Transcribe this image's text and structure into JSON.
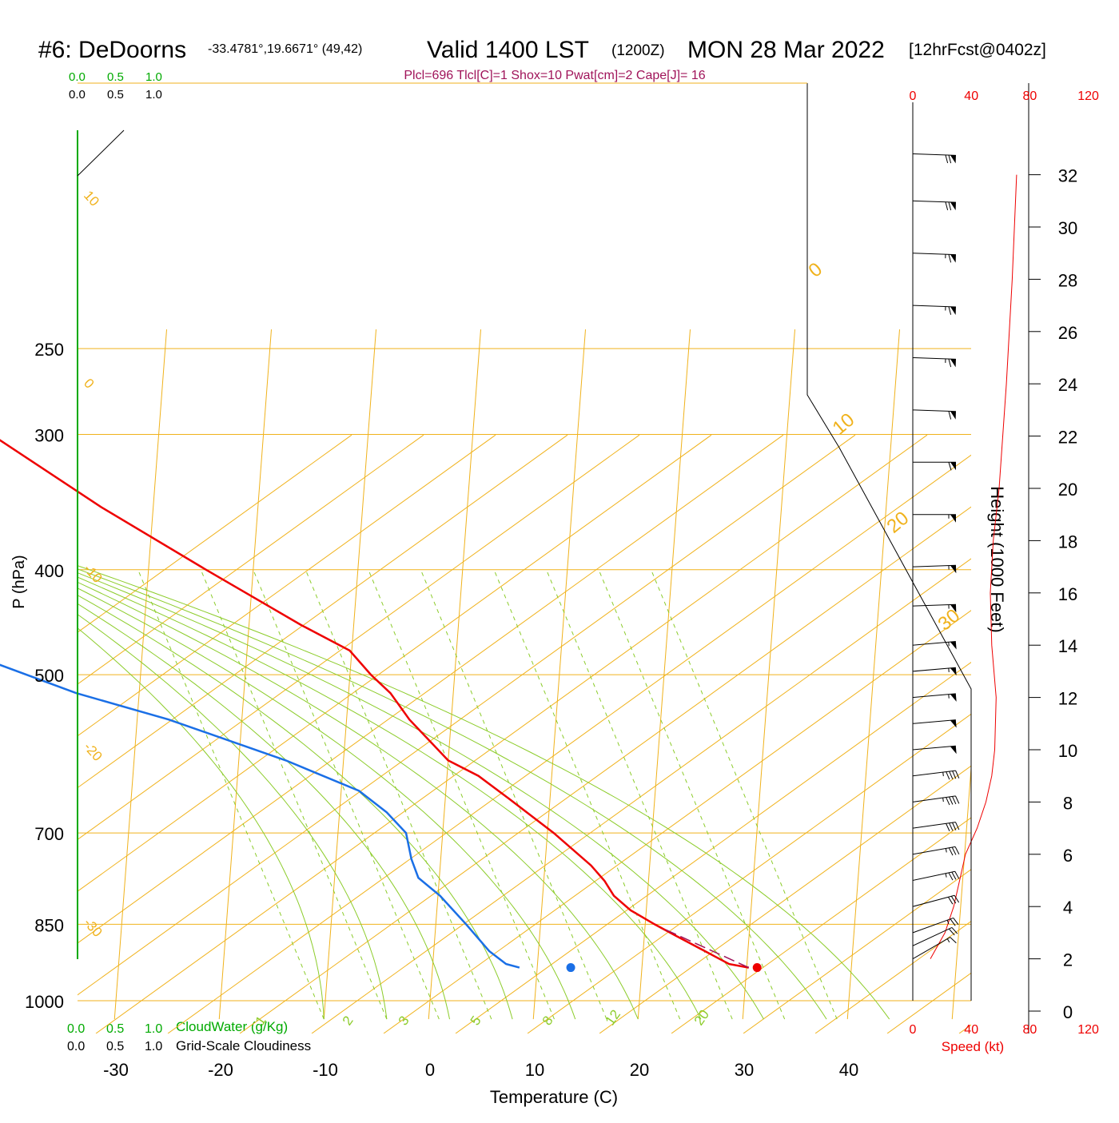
{
  "header": {
    "station": "#6: DeDoorns",
    "coords": "-33.4781°,19.6671° (49,42)",
    "valid": "Valid 1400 LST",
    "zulu": "(1200Z)",
    "date": "MON 28 Mar 2022",
    "fcst": "[12hrFcst@0402z]",
    "params": "Plcl=696 Tlcl[C]=1 Shox=10 Pwat[cm]=2 Cape[J]= 16"
  },
  "labels": {
    "xlabel": "Temperature (C)",
    "ylabel": "P (hPa)",
    "height_label": "Height (1000 Feet)",
    "speed_label": "Speed (kt)",
    "cloudwater_label": "CloudWater (g/Kg)",
    "cloudiness_label": "Grid-Scale Cloudiness",
    "scale_ticks": [
      "0.0",
      "0.5",
      "1.0"
    ]
  },
  "colors": {
    "temperature": "#ee0000",
    "dewpoint": "#1a6fe6",
    "isobars_isotherms": "#f0b21c",
    "dry_adiabats": "#8ccc2a",
    "mixing_ratio": "#8ccc2a",
    "title_magenta": "#a0145a",
    "cloudwater": "#00aa00",
    "speed": "#ee0000"
  },
  "chart_data": {
    "type": "line",
    "subtype": "skew-T log-P sounding",
    "x_ticks": [
      -30,
      -20,
      -10,
      0,
      10,
      20,
      30,
      40
    ],
    "pressure_ticks": [
      250,
      300,
      400,
      500,
      700,
      850,
      1000
    ],
    "isotherm_labels": [
      10,
      0,
      -10,
      -20,
      -30,
      0,
      10,
      20,
      30
    ],
    "mixing_ratio_labels": [
      "1",
      "2",
      "3",
      "5",
      "8",
      "12",
      "20"
    ],
    "height_ticks": [
      0,
      2,
      4,
      6,
      8,
      10,
      12,
      14,
      16,
      18,
      20,
      22,
      24,
      26,
      28,
      30,
      32
    ],
    "speed_ticks": [
      0,
      40,
      80,
      120
    ],
    "temperature_profile": [
      {
        "p": 932,
        "t": 30.2
      },
      {
        "p": 925,
        "t": 28.3
      },
      {
        "p": 900,
        "t": 25.9
      },
      {
        "p": 870,
        "t": 22.9
      },
      {
        "p": 850,
        "t": 20.9
      },
      {
        "p": 825,
        "t": 18.5
      },
      {
        "p": 800,
        "t": 16.8
      },
      {
        "p": 775,
        "t": 15.8
      },
      {
        "p": 750,
        "t": 14.4
      },
      {
        "p": 700,
        "t": 10.6
      },
      {
        "p": 650,
        "t": 6.0
      },
      {
        "p": 620,
        "t": 3.0
      },
      {
        "p": 600,
        "t": 0.0
      },
      {
        "p": 550,
        "t": -4.0
      },
      {
        "p": 520,
        "t": -6.0
      },
      {
        "p": 500,
        "t": -8.0
      },
      {
        "p": 475,
        "t": -10.2
      },
      {
        "p": 450,
        "t": -15.0
      },
      {
        "p": 400,
        "t": -24.5
      },
      {
        "p": 350,
        "t": -35.0
      },
      {
        "p": 300,
        "t": -46.0
      },
      {
        "p": 270,
        "t": -53.5
      }
    ],
    "dewpoint_profile": [
      {
        "p": 932,
        "t": 8.3
      },
      {
        "p": 925,
        "t": 7.0
      },
      {
        "p": 900,
        "t": 5.3
      },
      {
        "p": 850,
        "t": 2.9
      },
      {
        "p": 800,
        "t": 0.2
      },
      {
        "p": 770,
        "t": -2.0
      },
      {
        "p": 740,
        "t": -2.8
      },
      {
        "p": 700,
        "t": -3.5
      },
      {
        "p": 670,
        "t": -5.5
      },
      {
        "p": 640,
        "t": -8.3
      },
      {
        "p": 600,
        "t": -15.5
      },
      {
        "p": 550,
        "t": -27.0
      },
      {
        "p": 520,
        "t": -36.0
      },
      {
        "p": 480,
        "t": -46.0
      },
      {
        "p": 450,
        "t": -45.0
      },
      {
        "p": 400,
        "t": -46.5
      },
      {
        "p": 370,
        "t": -51.0
      },
      {
        "p": 320,
        "t": -61.5
      },
      {
        "p": 300,
        "t": -65.0
      },
      {
        "p": 270,
        "t": -69.0
      }
    ],
    "surface_temperature": {
      "p": 932,
      "t": 31.0
    },
    "surface_dewpoint": {
      "p": 932,
      "t": 13.2
    },
    "parcel_path": [
      {
        "p": 932,
        "t": 30.2
      },
      {
        "p": 860,
        "t": 22.0
      }
    ],
    "wind_speed_profile": [
      {
        "z": 2,
        "v": 12
      },
      {
        "z": 3,
        "v": 22
      },
      {
        "z": 4,
        "v": 28
      },
      {
        "z": 5,
        "v": 32
      },
      {
        "z": 6,
        "v": 36
      },
      {
        "z": 7,
        "v": 44
      },
      {
        "z": 8,
        "v": 50
      },
      {
        "z": 9,
        "v": 54
      },
      {
        "z": 10,
        "v": 56
      },
      {
        "z": 12,
        "v": 57
      },
      {
        "z": 14,
        "v": 54
      },
      {
        "z": 16,
        "v": 53
      },
      {
        "z": 18,
        "v": 55
      },
      {
        "z": 20,
        "v": 59
      },
      {
        "z": 24,
        "v": 64
      },
      {
        "z": 28,
        "v": 68
      },
      {
        "z": 32,
        "v": 71
      }
    ],
    "wind_barbs": [
      {
        "z": 2.0,
        "dir": 240,
        "spd": 15
      },
      {
        "z": 2.5,
        "dir": 245,
        "spd": 20
      },
      {
        "z": 3.0,
        "dir": 250,
        "spd": 25
      },
      {
        "z": 4.0,
        "dir": 255,
        "spd": 30
      },
      {
        "z": 5.0,
        "dir": 258,
        "spd": 35
      },
      {
        "z": 6.0,
        "dir": 260,
        "spd": 35
      },
      {
        "z": 7.0,
        "dir": 262,
        "spd": 40
      },
      {
        "z": 8.0,
        "dir": 262,
        "spd": 45
      },
      {
        "z": 9.0,
        "dir": 263,
        "spd": 45
      },
      {
        "z": 10.0,
        "dir": 265,
        "spd": 50
      },
      {
        "z": 11.0,
        "dir": 265,
        "spd": 50
      },
      {
        "z": 12.0,
        "dir": 265,
        "spd": 55
      },
      {
        "z": 13.0,
        "dir": 265,
        "spd": 55
      },
      {
        "z": 14.0,
        "dir": 265,
        "spd": 55
      },
      {
        "z": 15.5,
        "dir": 268,
        "spd": 55
      },
      {
        "z": 17.0,
        "dir": 268,
        "spd": 55
      },
      {
        "z": 19.0,
        "dir": 270,
        "spd": 55
      },
      {
        "z": 21.0,
        "dir": 270,
        "spd": 60
      },
      {
        "z": 23.0,
        "dir": 272,
        "spd": 60
      },
      {
        "z": 25.0,
        "dir": 272,
        "spd": 65
      },
      {
        "z": 27.0,
        "dir": 272,
        "spd": 65
      },
      {
        "z": 29.0,
        "dir": 272,
        "spd": 65
      },
      {
        "z": 31.0,
        "dir": 272,
        "spd": 70
      },
      {
        "z": 32.8,
        "dir": 272,
        "spd": 70
      }
    ]
  }
}
